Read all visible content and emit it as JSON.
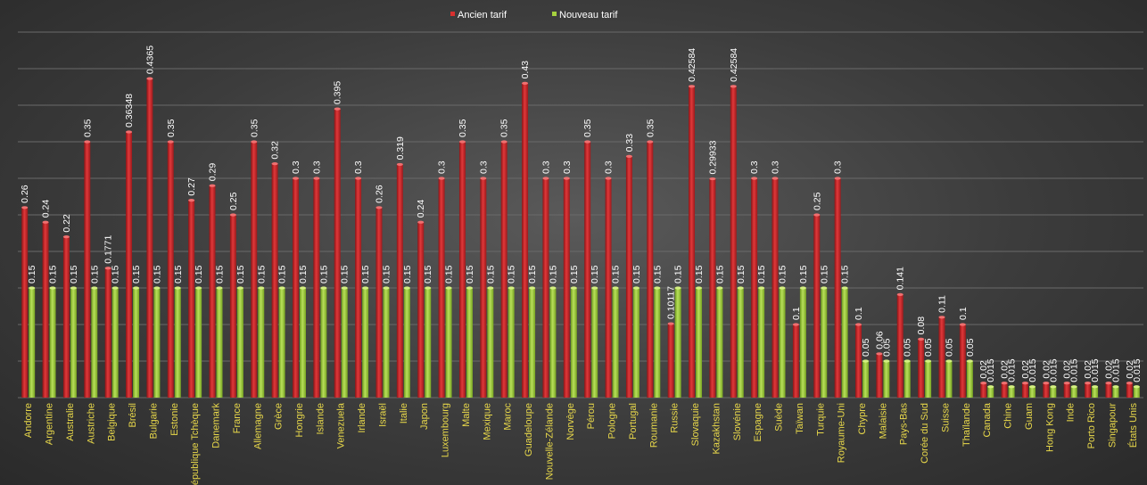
{
  "chart_data": {
    "type": "bar",
    "title": "",
    "xlabel": "",
    "ylabel": "",
    "ylim": [
      0,
      0.5
    ],
    "grid": true,
    "legend": "top-center",
    "colors": {
      "old": "#c8282a",
      "new": "#9ccc3a",
      "xlabel": "#e8d84a"
    },
    "categories": [
      "Andorre",
      "Argentine",
      "Australie",
      "Austriche",
      "Belgique",
      "Brésil",
      "Bulgarie",
      "Estonie",
      "République Tchèque",
      "Danemark",
      "France",
      "Allemagne",
      "Grèce",
      "Hongrie",
      "Islande",
      "Venezuela",
      "Irlande",
      "Israël",
      "Italie",
      "Japon",
      "Luxembourg",
      "Malte",
      "Mexique",
      "Maroc",
      "Guadeloupe",
      "Nouvelle-Zélande",
      "Norvège",
      "Pérou",
      "Pologne",
      "Portugal",
      "Roumanie",
      "Russie",
      "Slovaquie",
      "Kazakhstan",
      "Slovénie",
      "Espagne",
      "Suède",
      "Taïwan",
      "Turquie",
      "Royaume-Uni",
      "Chypre",
      "Malaisie",
      "Pays-Bas",
      "Corée du Sud",
      "Suisse",
      "Thaïlande",
      "Canada",
      "Chine",
      "Guam",
      "Hong Kong",
      "Inde",
      "Porto Rico",
      "Singapour",
      "États Unis"
    ],
    "series": [
      {
        "name": "Ancien tarif",
        "values": [
          0.26,
          0.24,
          0.22,
          0.35,
          0.1771,
          0.36348,
          0.4365,
          0.35,
          0.27,
          0.29,
          0.25,
          0.35,
          0.32,
          0.3,
          0.3,
          0.395,
          0.3,
          0.26,
          0.319,
          0.24,
          0.3,
          0.35,
          0.3,
          0.35,
          0.43,
          0.3,
          0.3,
          0.35,
          0.3,
          0.33,
          0.35,
          0.10117,
          0.42584,
          0.29933,
          0.42584,
          0.3,
          0.3,
          0.1,
          0.25,
          0.3,
          0.1,
          0.06,
          0.141,
          0.08,
          0.11,
          0.1,
          0.02,
          0.02,
          0.02,
          0.02,
          0.02,
          0.02,
          0.02,
          0.02
        ],
        "labels": [
          "0.26",
          "0.24",
          "0.22",
          "0.35",
          "0.1771",
          "0.36348",
          "0.4365",
          "0.35",
          "0.27",
          "0.29",
          "0.25",
          "0.35",
          "0.32",
          "0.3",
          "0.3",
          "0.395",
          "0.3",
          "0.26",
          "0.319",
          "0.24",
          "0.3",
          "0.35",
          "0.3",
          "0.35",
          "0.43",
          "0.3",
          "0.3",
          "0.35",
          "0.3",
          "0.33",
          "0.35",
          "0.10117",
          "0.42584",
          "0.29933",
          "0.42584",
          "0.3",
          "0.3",
          "0.1",
          "0.25",
          "0.3",
          "0.1",
          "0.06",
          "0.141",
          "0.08",
          "0.11",
          "0.1",
          "0.02",
          "0.02",
          "0.02",
          "0.02",
          "0.02",
          "0.02",
          "0.02",
          "0.02"
        ]
      },
      {
        "name": "Nouveau tarif",
        "values": [
          0.15,
          0.15,
          0.15,
          0.15,
          0.15,
          0.15,
          0.15,
          0.15,
          0.15,
          0.15,
          0.15,
          0.15,
          0.15,
          0.15,
          0.15,
          0.15,
          0.15,
          0.15,
          0.15,
          0.15,
          0.15,
          0.15,
          0.15,
          0.15,
          0.15,
          0.15,
          0.15,
          0.15,
          0.15,
          0.15,
          0.15,
          0.15,
          0.15,
          0.15,
          0.15,
          0.15,
          0.15,
          0.15,
          0.15,
          0.15,
          0.05,
          0.05,
          0.05,
          0.05,
          0.05,
          0.05,
          0.015,
          0.015,
          0.015,
          0.015,
          0.015,
          0.015,
          0.015,
          0.015
        ],
        "labels": [
          "0.15",
          "0.15",
          "0.15",
          "0.15",
          "0.15",
          "0.15",
          "0.15",
          "0.15",
          "0.15",
          "0.15",
          "0.15",
          "0.15",
          "0.15",
          "0.15",
          "0.15",
          "0.15",
          "0.15",
          "0.15",
          "0.15",
          "0.15",
          "0.15",
          "0.15",
          "0.15",
          "0.15",
          "0.15",
          "0.15",
          "0.15",
          "0.15",
          "0.15",
          "0.15",
          "0.15",
          "0.15",
          "0.15",
          "0.15",
          "0.15",
          "0.15",
          "0.15",
          "0.15",
          "0.15",
          "0.15",
          "0.05",
          "0.05",
          "0.05",
          "0.05",
          "0.05",
          "0.05",
          "0.015",
          "0.015",
          "0.015",
          "0.015",
          "0.015",
          "0.015",
          "0.015",
          "0.015"
        ]
      }
    ]
  }
}
